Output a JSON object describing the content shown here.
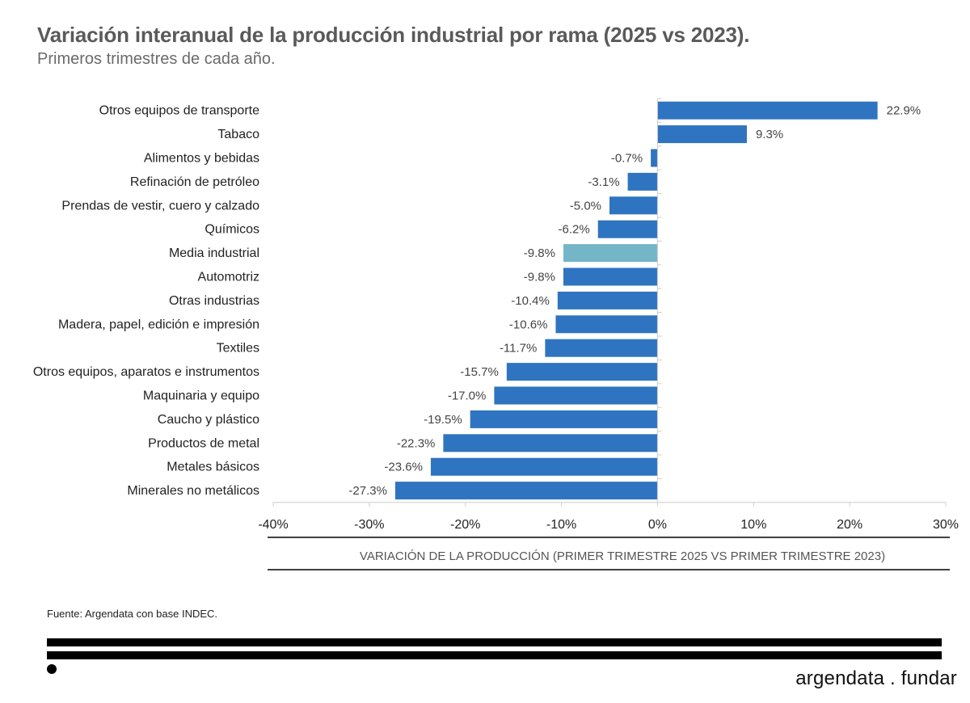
{
  "header": {
    "title": "Variación interanual de la producción industrial por rama (2025 vs 2023).",
    "subtitle": "Primeros trimestres de cada año."
  },
  "chart_data": {
    "type": "bar",
    "orientation": "horizontal",
    "categories": [
      "Otros equipos de transporte",
      "Tabaco",
      "Alimentos y bebidas",
      "Refinación de petróleo",
      "Prendas de vestir, cuero y calzado",
      "Químicos",
      "Media industrial",
      "Automotriz",
      "Otras industrias",
      "Madera, papel, edición e impresión",
      "Textiles",
      "Otros equipos, aparatos e instrumentos",
      "Maquinaria y equipo",
      "Caucho y plástico",
      "Productos de metal",
      "Metales básicos",
      "Minerales no metálicos"
    ],
    "values": [
      22.9,
      9.3,
      -0.7,
      -3.1,
      -5.0,
      -6.2,
      -9.8,
      -9.8,
      -10.4,
      -10.6,
      -11.7,
      -15.7,
      -17.0,
      -19.5,
      -22.3,
      -23.6,
      -27.3
    ],
    "data_labels": [
      "22.9%",
      "9.3%",
      "-0.7%",
      "-3.1%",
      "-5.0%",
      "-6.2%",
      "-9.8%",
      "-9.8%",
      "-10.4%",
      "-10.6%",
      "-11.7%",
      "-15.7%",
      "-17.0%",
      "-19.5%",
      "-22.3%",
      "-23.6%",
      "-27.3%"
    ],
    "highlight_index": 6,
    "colors": {
      "bar": "#2f74c0",
      "highlight": "#74b6c8",
      "axis": "#cccccc"
    },
    "xlim": [
      -40,
      30
    ],
    "xticks": [
      -40,
      -30,
      -20,
      -10,
      0,
      10,
      20,
      30
    ],
    "xtick_labels": [
      "-40%",
      "-30%",
      "-20%",
      "-10%",
      "0%",
      "10%",
      "20%",
      "30%"
    ],
    "xlabel": "VARIACIÓN DE LA PRODUCCIÓN (PRIMER TRIMESTRE 2025 VS PRIMER TRIMESTRE 2023)",
    "ylabel": "",
    "grid": false,
    "legend": "none"
  },
  "footer": {
    "source": "Fuente: Argendata con base INDEC.",
    "brand": "argendata . fundar"
  }
}
